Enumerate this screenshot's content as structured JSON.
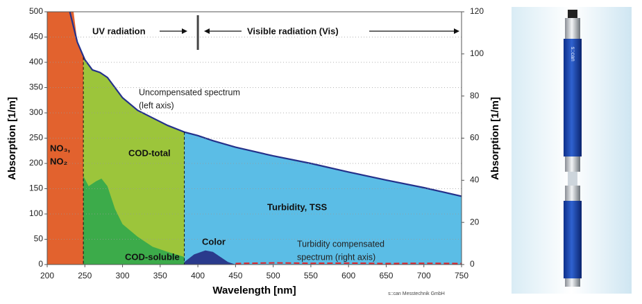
{
  "chart_data": {
    "type": "area",
    "x_label": "Wavelength [nm]",
    "y_label": "Absorption [1/m]",
    "y2_label": "Absorption [1/m]",
    "xlim": [
      200,
      750
    ],
    "xticks": [
      200,
      250,
      300,
      350,
      400,
      450,
      500,
      550,
      600,
      650,
      700,
      750
    ],
    "ylim": [
      0,
      500
    ],
    "yticks": [
      0,
      50,
      100,
      150,
      200,
      250,
      300,
      350,
      400,
      450,
      500
    ],
    "y2lim": [
      0,
      120
    ],
    "y2ticks": [
      0,
      20,
      40,
      60,
      80,
      100,
      120
    ],
    "grid": true,
    "annotations": {
      "uv": "UV radiation",
      "vis": "Visible radiation (Vis)",
      "credit": "s::can Messtechnik GmbH"
    },
    "series": [
      {
        "name": [
          "NO₃,",
          "NO₂"
        ],
        "style": "area",
        "color": "#e2622e",
        "x": [
          200,
          235,
          240,
          245,
          248
        ],
        "values": [
          500,
          500,
          440,
          420,
          410
        ]
      },
      {
        "name": [
          "COD-total"
        ],
        "style": "area",
        "color": "#9cc53b",
        "x": [
          248,
          260,
          270,
          280,
          290,
          300,
          320,
          340,
          360,
          382
        ],
        "values": [
          410,
          385,
          380,
          370,
          350,
          330,
          305,
          290,
          275,
          262
        ]
      },
      {
        "name": [
          "Turbidity, TSS"
        ],
        "style": "area",
        "color": "#5bbde6",
        "x": [
          382,
          400,
          420,
          450,
          500,
          550,
          600,
          650,
          700,
          750
        ],
        "values": [
          262,
          255,
          245,
          232,
          215,
          200,
          183,
          167,
          152,
          135
        ]
      },
      {
        "name": [
          "COD-soluble"
        ],
        "style": "area",
        "color": "#3cab4a",
        "x": [
          248,
          255,
          265,
          272,
          280,
          290,
          300,
          320,
          340,
          360,
          382
        ],
        "values": [
          175,
          155,
          165,
          170,
          155,
          110,
          80,
          55,
          35,
          25,
          15
        ]
      },
      {
        "name": [
          "Color"
        ],
        "style": "area",
        "color": "#2a3a8c",
        "x": [
          382,
          395,
          410,
          420,
          430,
          440,
          450
        ],
        "values": [
          5,
          20,
          28,
          25,
          15,
          5,
          0
        ]
      },
      {
        "name": [
          "Uncompensated spectrum",
          "(left axis)"
        ],
        "style": "line",
        "color": "#24318a",
        "x": [
          230,
          240,
          250,
          260,
          270,
          280,
          300,
          320,
          340,
          360,
          382,
          400,
          420,
          450,
          500,
          550,
          600,
          650,
          700,
          750
        ],
        "values": [
          500,
          440,
          405,
          385,
          380,
          370,
          330,
          305,
          290,
          275,
          262,
          255,
          245,
          232,
          215,
          200,
          183,
          167,
          152,
          135
        ]
      },
      {
        "name": [
          "Turbidity compensated",
          "spectrum (right axis)"
        ],
        "style": "dashed-line",
        "color": "#e0262b",
        "axis": "y2",
        "x": [
          450,
          500,
          550,
          600,
          650,
          700,
          750
        ],
        "values": [
          0.5,
          0.8,
          0.6,
          0.7,
          0.5,
          0.6,
          0.5
        ]
      }
    ]
  },
  "photo": {
    "label": "s::can"
  }
}
